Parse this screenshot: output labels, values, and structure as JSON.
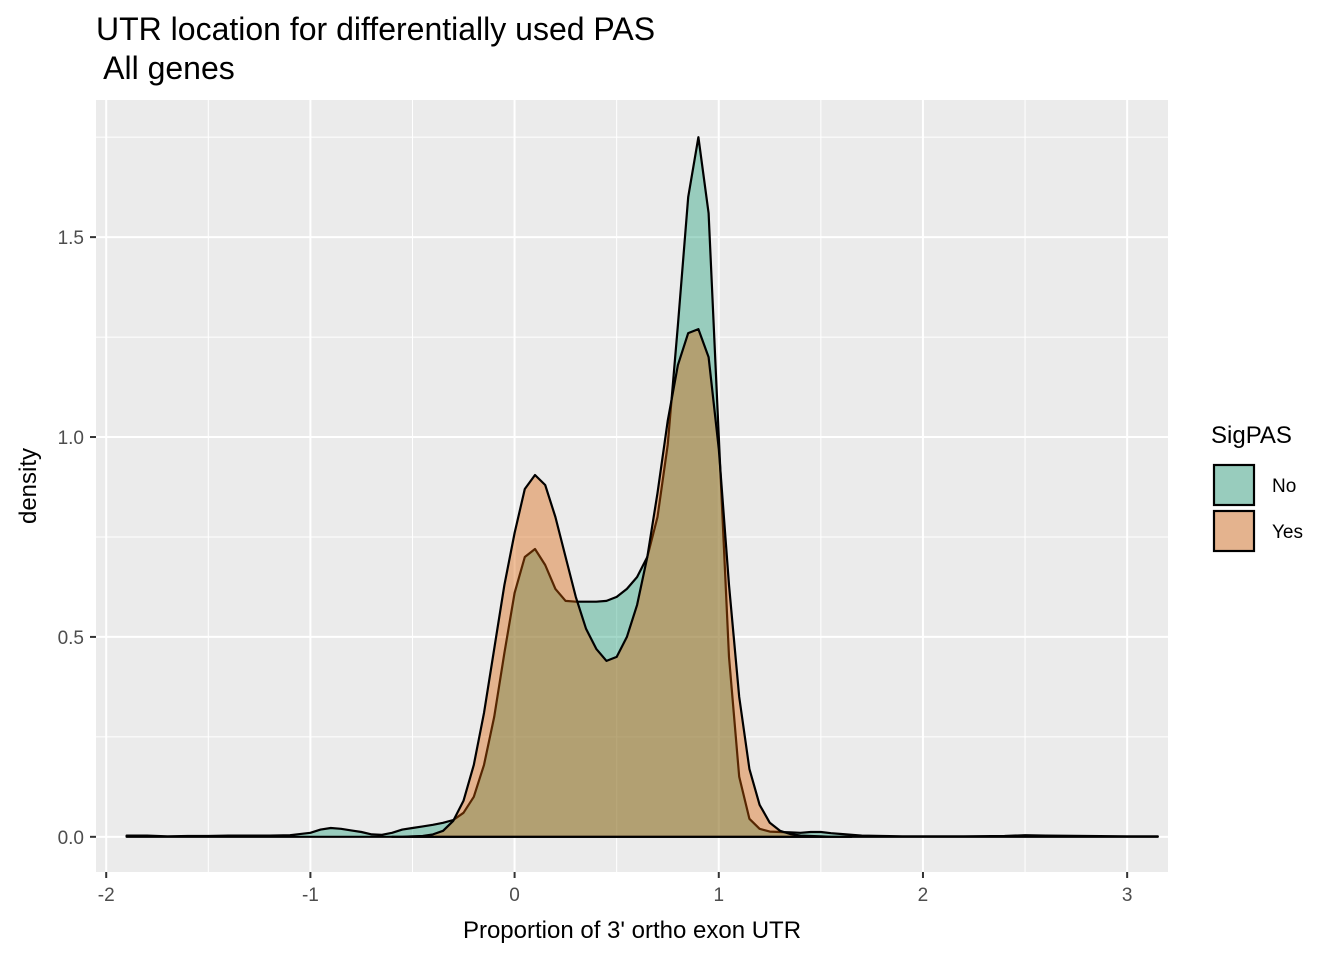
{
  "chart_data": {
    "type": "area",
    "title_lines": [
      "UTR location for differentially used PAS",
      " All genes"
    ],
    "xlabel": "Proportion of 3' ortho exon UTR",
    "ylabel": "density",
    "xlim": [
      -2.05,
      3.2
    ],
    "ylim": [
      -0.088,
      1.843
    ],
    "x_ticks": [
      -2,
      -1,
      0,
      1,
      2,
      3
    ],
    "x_tick_labels": [
      "-2",
      "-1",
      "0",
      "1",
      "2",
      "3"
    ],
    "y_ticks": [
      0.0,
      0.5,
      1.0,
      1.5
    ],
    "y_tick_labels": [
      "0.0",
      "0.5",
      "1.0",
      "1.5"
    ],
    "grid": true,
    "legend": {
      "title": "SigPAS",
      "position": "right"
    },
    "series": [
      {
        "name": "No",
        "color": "#1b9e77",
        "x": [
          -1.9,
          -1.8,
          -1.7,
          -1.6,
          -1.5,
          -1.4,
          -1.3,
          -1.2,
          -1.1,
          -1.0,
          -0.95,
          -0.9,
          -0.85,
          -0.8,
          -0.75,
          -0.7,
          -0.65,
          -0.6,
          -0.55,
          -0.5,
          -0.45,
          -0.4,
          -0.35,
          -0.3,
          -0.25,
          -0.2,
          -0.15,
          -0.1,
          -0.05,
          0.0,
          0.05,
          0.1,
          0.15,
          0.2,
          0.25,
          0.3,
          0.35,
          0.4,
          0.45,
          0.5,
          0.55,
          0.6,
          0.65,
          0.7,
          0.75,
          0.8,
          0.85,
          0.9,
          0.95,
          1.0,
          1.05,
          1.1,
          1.15,
          1.2,
          1.25,
          1.3,
          1.35,
          1.4,
          1.45,
          1.5,
          1.55,
          1.6,
          1.7,
          1.8,
          1.9,
          2.0,
          2.2,
          2.4,
          2.5,
          2.6,
          2.8,
          3.0,
          3.15
        ],
        "values": [
          0.003,
          0.003,
          0.001,
          0.002,
          0.002,
          0.003,
          0.003,
          0.003,
          0.004,
          0.01,
          0.018,
          0.022,
          0.02,
          0.016,
          0.012,
          0.006,
          0.005,
          0.01,
          0.018,
          0.022,
          0.026,
          0.03,
          0.035,
          0.042,
          0.06,
          0.1,
          0.18,
          0.3,
          0.46,
          0.61,
          0.7,
          0.72,
          0.68,
          0.62,
          0.59,
          0.588,
          0.588,
          0.588,
          0.59,
          0.6,
          0.62,
          0.65,
          0.7,
          0.8,
          0.98,
          1.28,
          1.6,
          1.75,
          1.56,
          1.0,
          0.45,
          0.15,
          0.045,
          0.02,
          0.013,
          0.012,
          0.011,
          0.01,
          0.012,
          0.012,
          0.009,
          0.007,
          0.003,
          0.002,
          0.001,
          0.001,
          0.001,
          0.002,
          0.004,
          0.003,
          0.002,
          0.001,
          0.001
        ]
      },
      {
        "name": "Yes",
        "color": "#d95f02",
        "x": [
          -0.6,
          -0.55,
          -0.5,
          -0.45,
          -0.4,
          -0.35,
          -0.3,
          -0.25,
          -0.2,
          -0.15,
          -0.1,
          -0.05,
          0.0,
          0.05,
          0.1,
          0.15,
          0.2,
          0.25,
          0.3,
          0.35,
          0.4,
          0.45,
          0.5,
          0.55,
          0.6,
          0.65,
          0.7,
          0.75,
          0.8,
          0.85,
          0.9,
          0.95,
          1.0,
          1.05,
          1.1,
          1.15,
          1.2,
          1.25,
          1.3,
          1.35,
          1.4,
          1.45,
          1.5,
          1.55,
          1.6,
          1.65
        ],
        "values": [
          0.0,
          0.0,
          0.001,
          0.002,
          0.006,
          0.015,
          0.04,
          0.09,
          0.18,
          0.31,
          0.47,
          0.63,
          0.76,
          0.87,
          0.905,
          0.88,
          0.8,
          0.7,
          0.6,
          0.52,
          0.47,
          0.44,
          0.45,
          0.5,
          0.58,
          0.7,
          0.86,
          1.04,
          1.18,
          1.26,
          1.27,
          1.2,
          0.97,
          0.63,
          0.35,
          0.17,
          0.08,
          0.035,
          0.015,
          0.007,
          0.003,
          0.002,
          0.001,
          0.0,
          0.0,
          0.0
        ]
      }
    ]
  }
}
